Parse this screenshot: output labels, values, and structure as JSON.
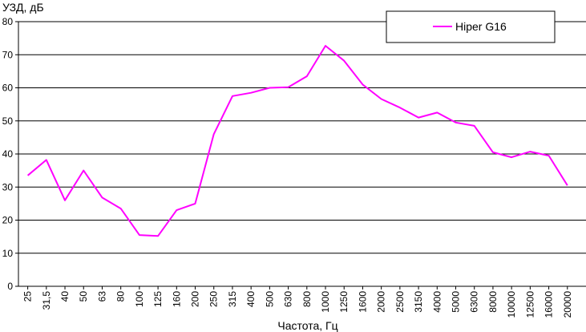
{
  "chart_data": {
    "type": "line",
    "ylabel": "УЗД, дБ",
    "xlabel": "Частота, Гц",
    "ylim": [
      0,
      80
    ],
    "yticks": [
      "0",
      "10",
      "20",
      "30",
      "40",
      "50",
      "60",
      "70",
      "80"
    ],
    "categories": [
      "25",
      "31,5",
      "40",
      "50",
      "63",
      "80",
      "100",
      "125",
      "160",
      "200",
      "250",
      "315",
      "400",
      "500",
      "630",
      "800",
      "1000",
      "1250",
      "1600",
      "2000",
      "2500",
      "3150",
      "4000",
      "5000",
      "6300",
      "8000",
      "10000",
      "12500",
      "16000",
      "20000"
    ],
    "series": [
      {
        "name": "Hiper G16",
        "color": "#ff00ff",
        "values": [
          33.5,
          38.2,
          26,
          35,
          26.8,
          23.5,
          15.5,
          15.2,
          23,
          25,
          46,
          57.5,
          58.5,
          60,
          60.2,
          63.5,
          72.7,
          68.2,
          61,
          56.6,
          54,
          51,
          52.5,
          49.5,
          48.5,
          40.5,
          39,
          40.7,
          39.5,
          30.5
        ]
      }
    ],
    "grid": true,
    "legend_position": "top-right"
  }
}
